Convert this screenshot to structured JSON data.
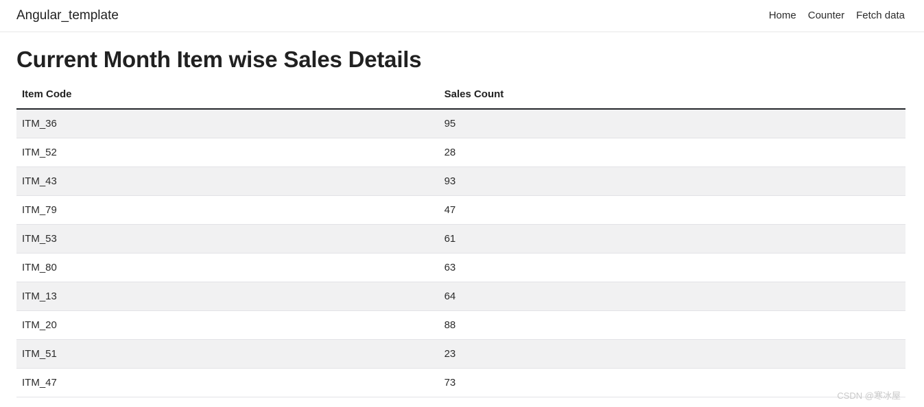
{
  "navbar": {
    "brand": "Angular_template",
    "links": [
      {
        "label": "Home"
      },
      {
        "label": "Counter"
      },
      {
        "label": "Fetch data"
      }
    ]
  },
  "page": {
    "title": "Current Month Item wise Sales Details"
  },
  "table": {
    "headers": {
      "item_code": "Item Code",
      "sales_count": "Sales Count"
    },
    "rows": [
      {
        "code": "ITM_36",
        "count": "95"
      },
      {
        "code": "ITM_52",
        "count": "28"
      },
      {
        "code": "ITM_43",
        "count": "93"
      },
      {
        "code": "ITM_79",
        "count": "47"
      },
      {
        "code": "ITM_53",
        "count": "61"
      },
      {
        "code": "ITM_80",
        "count": "63"
      },
      {
        "code": "ITM_13",
        "count": "64"
      },
      {
        "code": "ITM_20",
        "count": "88"
      },
      {
        "code": "ITM_51",
        "count": "23"
      },
      {
        "code": "ITM_47",
        "count": "73"
      }
    ]
  },
  "watermark": {
    "text": "CSDN @寒冰屋"
  },
  "colors": {
    "stripe": "#f1f1f2",
    "row_border": "#e2e2e6",
    "header_border": "#24272b",
    "navbar_border": "#e7e7e7",
    "text": "#212121",
    "watermark": "#c9c9c9"
  }
}
